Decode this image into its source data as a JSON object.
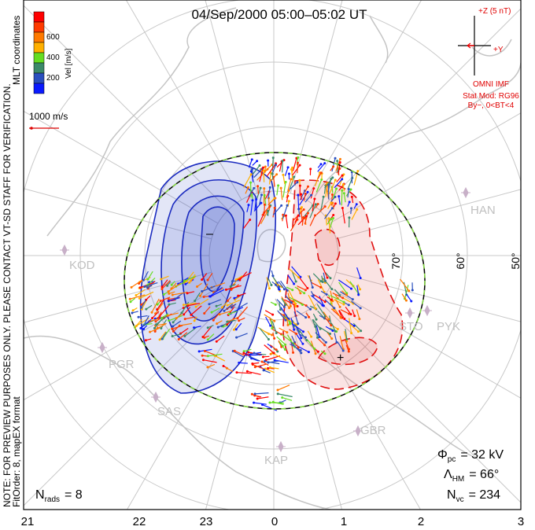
{
  "title": "04/Sep/2000 05:00–05:02 UT",
  "side_note": "NOTE: FOR PREVIEW PURPOSES ONLY. PLEASE CONTACT VT-SD STAFF FOR VERIFICATION.",
  "coords": "MLT coordinates",
  "fit_order": "FitOrder: 8, mapEX format",
  "colorbar": {
    "label": "Vel [m/s]",
    "ticks": [
      "600",
      "400",
      "200"
    ],
    "colors": [
      "#ff0000",
      "#ff3a00",
      "#ff7a00",
      "#ffb000",
      "#66dd22",
      "#3c8a6a",
      "#2a4fbf",
      "#0a1aff"
    ]
  },
  "scale_label": "1000 m/s",
  "imf": {
    "z_label": "+Z (5 nT)",
    "y_label": "+Y",
    "source": "OMNI IMF",
    "model": "Stat Mod: RG96",
    "condition": "By−, 0<BT<4",
    "color": "#e00000"
  },
  "lat_labels": [
    "70°",
    "60°",
    "50°"
  ],
  "stations": [
    "KOD",
    "HAN",
    "PGR",
    "SAS",
    "KAP",
    "GBR",
    "STO",
    "PYK"
  ],
  "mlt_labels": [
    "21",
    "22",
    "23",
    "0",
    "1",
    "2",
    "3"
  ],
  "stats": {
    "phi_sym": "Φ",
    "phi_sub": "pc",
    "phi_val": "= 32 kV",
    "lambda_sym": "Λ",
    "lambda_sub": "HM",
    "lambda_val": "= 66°",
    "nvc_sym": "N",
    "nvc_sub": "vc",
    "nvc_val": "= 234",
    "nrads_sym": "N",
    "nrads_sub": "rads",
    "nrads_val": "= 8"
  }
}
